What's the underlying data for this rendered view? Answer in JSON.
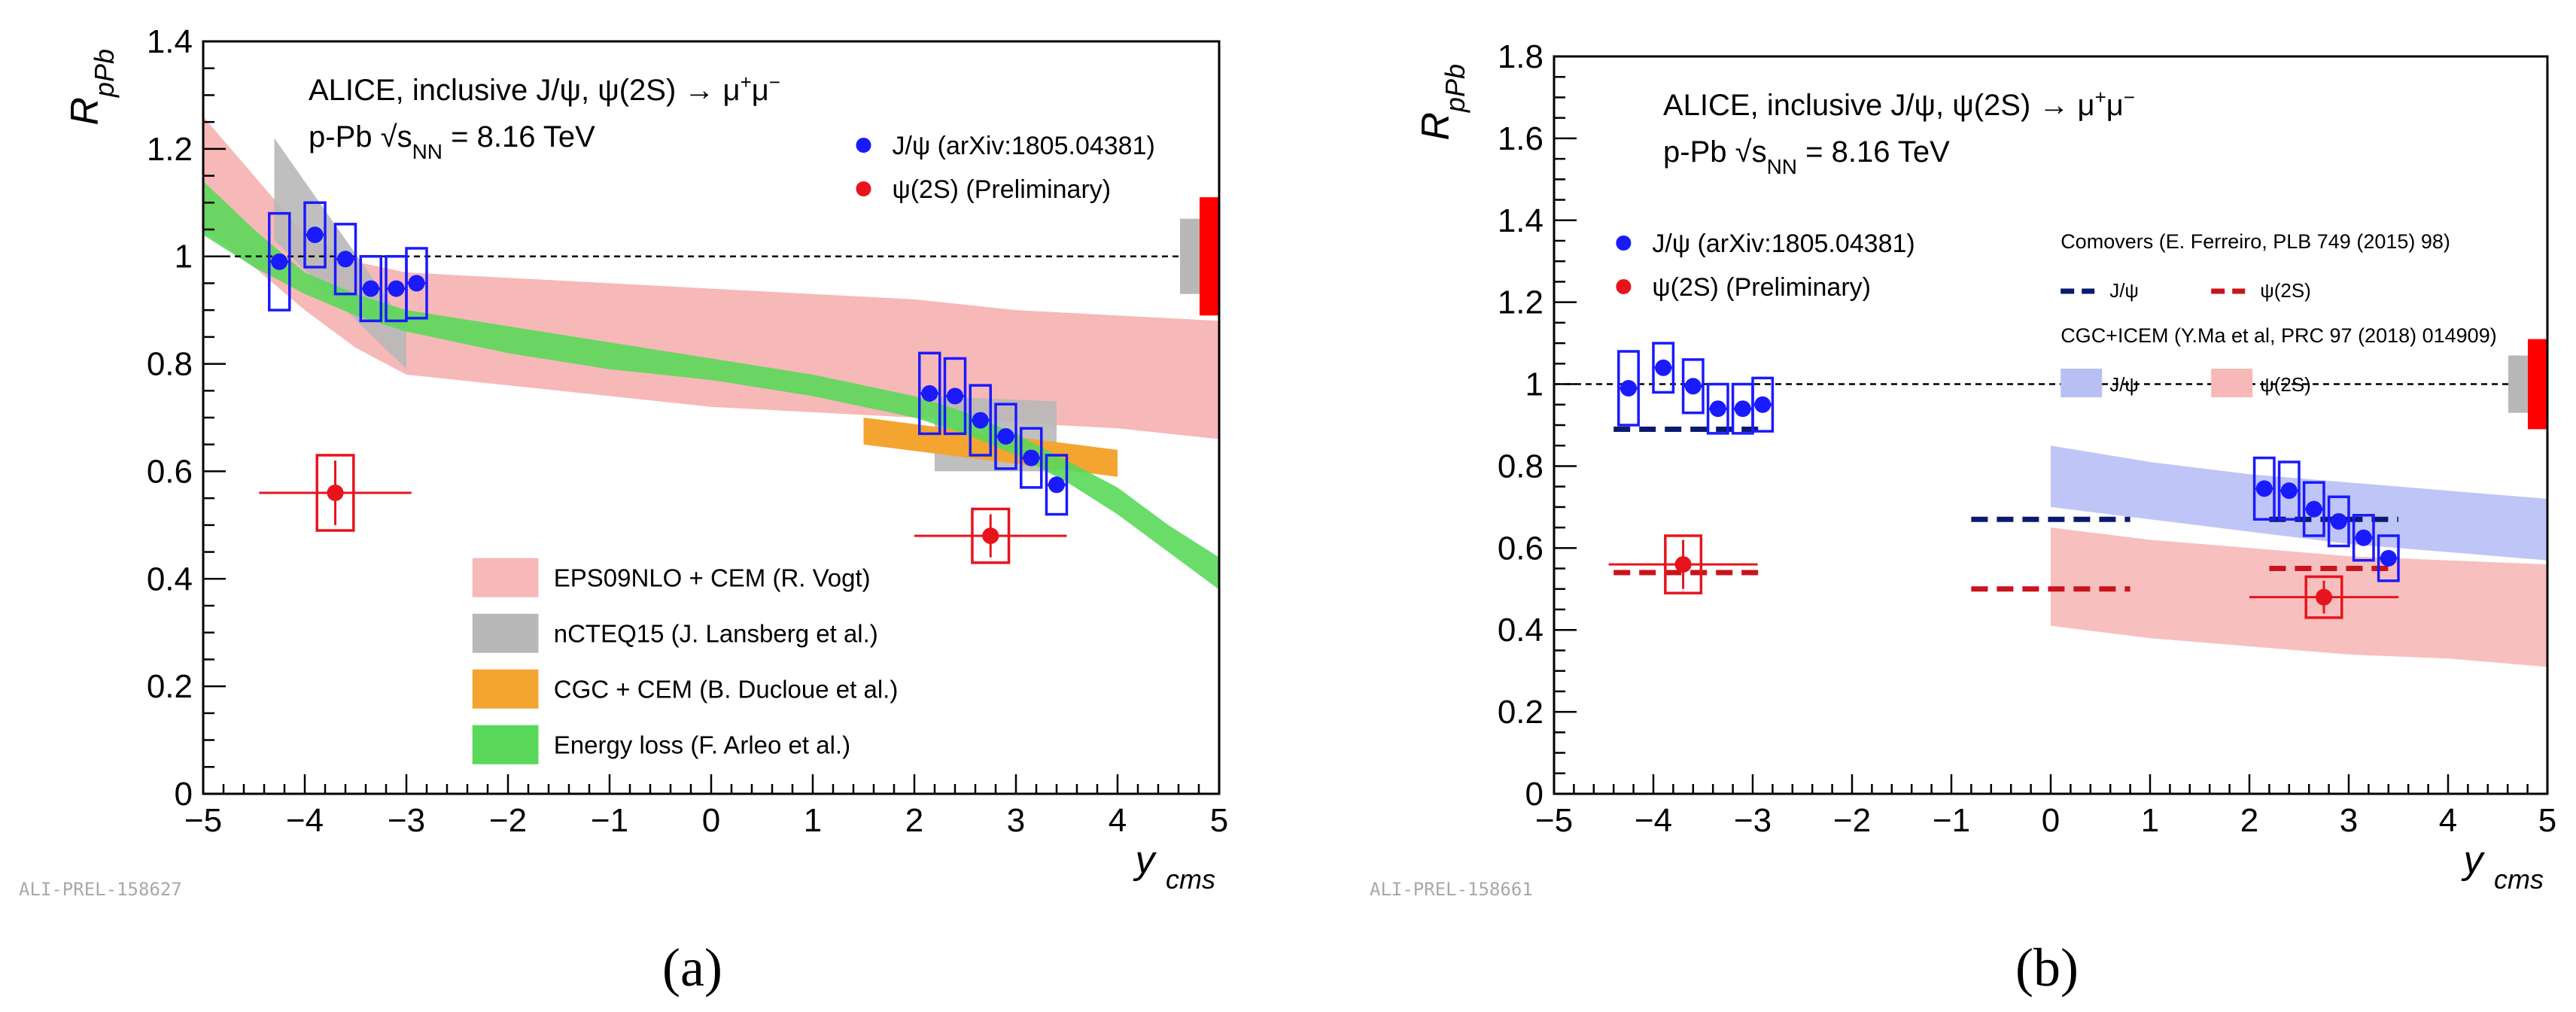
{
  "figure": {
    "panel_a_label": "(a)",
    "panel_b_label": "(b)"
  },
  "colors": {
    "jpsi": "#1a1aff",
    "psi2s": "#e8141c",
    "eps09": "#f7b8b8",
    "ncteq": "#b8b8b8",
    "cgc": "#f4a430",
    "eloss": "#5ad85a",
    "comovers_jpsi": "#0a1a6e",
    "comovers_psi2s": "#c8141c",
    "icem_jpsi": "#b8bff5",
    "icem_psi2s": "#f7b8b8"
  },
  "chart_data": [
    {
      "type": "scatter",
      "title": "ALICE, inclusive J/ψ, ψ(2S) → μ⁺μ⁻",
      "subtitle": "p-Pb √s_NN = 8.16 TeV",
      "xlabel": "y_cms",
      "ylabel": "R_pPb",
      "xlim": [
        -5,
        5
      ],
      "ylim": [
        0,
        1.4
      ],
      "x_ticks": [
        "−5",
        "−4",
        "−3",
        "−2",
        "−1",
        "0",
        "1",
        "2",
        "3",
        "4",
        "5"
      ],
      "y_ticks": [
        "0",
        "0.2",
        "0.4",
        "0.6",
        "0.8",
        "1",
        "1.2",
        "1.4"
      ],
      "legend_placement": "top-right",
      "series": [
        {
          "name": "J/ψ (arXiv:1805.04381)",
          "x": [
            -4.25,
            -3.9,
            -3.6,
            -3.35,
            -3.1,
            -2.9,
            2.15,
            2.4,
            2.65,
            2.9,
            3.15,
            3.4
          ],
          "x_err": [
            0.1,
            0.1,
            0.1,
            0.1,
            0.1,
            0.1,
            0.1,
            0.1,
            0.1,
            0.1,
            0.1,
            0.1
          ],
          "y": [
            0.99,
            1.04,
            0.995,
            0.94,
            0.94,
            0.95,
            0.745,
            0.74,
            0.695,
            0.665,
            0.625,
            0.575
          ],
          "syst": [
            0.09,
            0.06,
            0.065,
            0.06,
            0.06,
            0.065,
            0.075,
            0.07,
            0.065,
            0.06,
            0.055,
            0.055
          ]
        },
        {
          "name": "ψ(2S) (Preliminary)",
          "x": [
            -3.7,
            2.75
          ],
          "x_err": [
            0.75,
            0.75
          ],
          "y": [
            0.56,
            0.48
          ],
          "stat": [
            0.06,
            0.04
          ],
          "syst": [
            0.07,
            0.05
          ]
        }
      ],
      "global_uncertainty": [
        {
          "name": "J/ψ global",
          "y_low": 0.93,
          "y_high": 1.07
        },
        {
          "name": "ψ(2S) global",
          "y_low": 0.89,
          "y_high": 1.11
        }
      ],
      "reference_line": 1.0,
      "model_legend": [
        "EPS09NLO + CEM (R. Vogt)",
        "nCTEQ15 (J. Lansberg et al.)",
        "CGC + CEM (B. Ducloue et al.)",
        "Energy loss (F. Arleo et al.)"
      ],
      "models": [
        {
          "name": "EPS09NLO + CEM (R. Vogt)",
          "x": [
            -5,
            -4.5,
            -4,
            -3.5,
            -3,
            -2,
            -1,
            0,
            1,
            2,
            3,
            4,
            5
          ],
          "y_low": [
            1.05,
            0.98,
            0.9,
            0.83,
            0.78,
            0.76,
            0.74,
            0.72,
            0.71,
            0.7,
            0.69,
            0.68,
            0.66
          ],
          "y_high": [
            1.26,
            1.15,
            1.04,
            0.99,
            0.97,
            0.96,
            0.95,
            0.94,
            0.93,
            0.92,
            0.9,
            0.89,
            0.88
          ]
        },
        {
          "name": "nCTEQ15 (J. Lansberg et al.)",
          "segments": [
            {
              "x": [
                -4.3,
                -3.0
              ],
              "y_low": [
                1.03,
                0.79
              ],
              "y_high": [
                1.22,
                0.87
              ]
            },
            {
              "x": [
                2.2,
                3.4
              ],
              "y_low": [
                0.6,
                0.6
              ],
              "y_high": [
                0.74,
                0.73
              ]
            }
          ]
        },
        {
          "name": "CGC + CEM (B. Ducloue et al.)",
          "x": [
            1.5,
            4.0
          ],
          "y_low": [
            0.65,
            0.59
          ],
          "y_high": [
            0.7,
            0.64
          ]
        },
        {
          "name": "Energy loss (F. Arleo et al.)",
          "x": [
            -5,
            -4.5,
            -4,
            -3.5,
            -3,
            -2,
            -1,
            0,
            1,
            2,
            2.5,
            3,
            3.5,
            4,
            4.5,
            5
          ],
          "y_low": [
            1.04,
            0.98,
            0.93,
            0.89,
            0.86,
            0.82,
            0.79,
            0.77,
            0.74,
            0.7,
            0.67,
            0.63,
            0.58,
            0.52,
            0.45,
            0.38
          ],
          "y_high": [
            1.14,
            1.05,
            0.97,
            0.93,
            0.9,
            0.87,
            0.84,
            0.81,
            0.78,
            0.74,
            0.71,
            0.67,
            0.62,
            0.57,
            0.5,
            0.44
          ]
        }
      ],
      "watermark": "ALI-PREL-158627"
    },
    {
      "type": "scatter",
      "title": "ALICE, inclusive J/ψ, ψ(2S) → μ⁺μ⁻",
      "subtitle": "p-Pb √s_NN = 8.16 TeV",
      "xlabel": "y_cms",
      "ylabel": "R_pPb",
      "xlim": [
        -5,
        5
      ],
      "ylim": [
        0,
        1.8
      ],
      "x_ticks": [
        "−5",
        "−4",
        "−3",
        "−2",
        "−1",
        "0",
        "1",
        "2",
        "3",
        "4",
        "5"
      ],
      "y_ticks": [
        "0",
        "0.2",
        "0.4",
        "0.6",
        "0.8",
        "1",
        "1.2",
        "1.4",
        "1.6",
        "1.8"
      ],
      "legend_placement": "top-right",
      "series": [
        {
          "name": "J/ψ (arXiv:1805.04381)",
          "x": [
            -4.25,
            -3.9,
            -3.6,
            -3.35,
            -3.1,
            -2.9,
            2.15,
            2.4,
            2.65,
            2.9,
            3.15,
            3.4
          ],
          "x_err": [
            0.1,
            0.1,
            0.1,
            0.1,
            0.1,
            0.1,
            0.1,
            0.1,
            0.1,
            0.1,
            0.1,
            0.1
          ],
          "y": [
            0.99,
            1.04,
            0.995,
            0.94,
            0.94,
            0.95,
            0.745,
            0.74,
            0.695,
            0.665,
            0.625,
            0.575
          ],
          "syst": [
            0.09,
            0.06,
            0.065,
            0.06,
            0.06,
            0.065,
            0.075,
            0.07,
            0.065,
            0.06,
            0.055,
            0.055
          ]
        },
        {
          "name": "ψ(2S) (Preliminary)",
          "x": [
            -3.7,
            2.75
          ],
          "x_err": [
            0.75,
            0.75
          ],
          "y": [
            0.56,
            0.48
          ],
          "stat": [
            0.06,
            0.04
          ],
          "syst": [
            0.07,
            0.05
          ]
        }
      ],
      "global_uncertainty": [
        {
          "name": "J/ψ global",
          "y_low": 0.93,
          "y_high": 1.07
        },
        {
          "name": "ψ(2S) global",
          "y_low": 0.89,
          "y_high": 1.11
        }
      ],
      "reference_line": 1.0,
      "model_legend_title_1": "Comovers (E. Ferreiro, PLB 749 (2015) 98)",
      "model_legend_title_2": "CGC+ICEM (Y.Ma et al, PRC 97 (2018) 014909)",
      "model_legend_entries": [
        "J/ψ",
        "ψ(2S)"
      ],
      "models": [
        {
          "name": "Comovers J/ψ",
          "segments": [
            {
              "x": [
                -4.4,
                -2.9
              ],
              "y": 0.89
            },
            {
              "x": [
                -0.8,
                0.8
              ],
              "y": 0.67
            },
            {
              "x": [
                2.2,
                3.5
              ],
              "y": 0.67
            }
          ]
        },
        {
          "name": "Comovers ψ(2S)",
          "segments": [
            {
              "x": [
                -4.4,
                -2.9
              ],
              "y": 0.54
            },
            {
              "x": [
                -0.8,
                0.8
              ],
              "y": 0.5
            },
            {
              "x": [
                2.2,
                3.5
              ],
              "y": 0.55
            }
          ]
        },
        {
          "name": "CGC+ICEM J/ψ",
          "x": [
            0,
            1,
            2,
            3,
            4,
            5
          ],
          "y_low": [
            0.7,
            0.67,
            0.64,
            0.61,
            0.59,
            0.57
          ],
          "y_high": [
            0.85,
            0.81,
            0.78,
            0.76,
            0.74,
            0.72
          ]
        },
        {
          "name": "CGC+ICEM ψ(2S)",
          "x": [
            0,
            1,
            2,
            3,
            4,
            5
          ],
          "y_low": [
            0.41,
            0.38,
            0.36,
            0.34,
            0.33,
            0.31
          ],
          "y_high": [
            0.65,
            0.62,
            0.6,
            0.58,
            0.57,
            0.56
          ]
        }
      ],
      "watermark": "ALI-PREL-158661"
    }
  ]
}
